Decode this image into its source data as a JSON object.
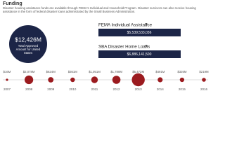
{
  "header": {
    "title": "Funding",
    "description": "Disaster housing assistance funds are available through FEMA's Individual and Household Program. Disaster survivors can also receive housing assistance in the form of federal disaster loans administrated by the Small Business Administration."
  },
  "summary": {
    "amount": "$12,426M",
    "label": "Total Approved Amount for United States"
  },
  "programs": [
    {
      "name": "FEMA Individual Assistance",
      "help": "?",
      "amount": "$5,539,533,036"
    },
    {
      "name": "SBA Disaster Home Loans",
      "help": "?",
      "amount": "$6,886,141,500"
    }
  ],
  "timeline": [
    {
      "year": "2007",
      "label": "$16M",
      "value": 16
    },
    {
      "year": "2008",
      "label": "$2,078M",
      "value": 2078
    },
    {
      "year": "2009",
      "label": "$624M",
      "value": 624
    },
    {
      "year": "2010",
      "label": "$361M",
      "value": 361
    },
    {
      "year": "2011",
      "label": "$1,051M",
      "value": 1051
    },
    {
      "year": "2012",
      "label": "$1,788M",
      "value": 1788
    },
    {
      "year": "2013",
      "label": "$5,472M",
      "value": 5472
    },
    {
      "year": "2014",
      "label": "$491M",
      "value": 491
    },
    {
      "year": "2015",
      "label": "$326M",
      "value": 326
    },
    {
      "year": "2016",
      "label": "$219M",
      "value": 219
    }
  ]
}
